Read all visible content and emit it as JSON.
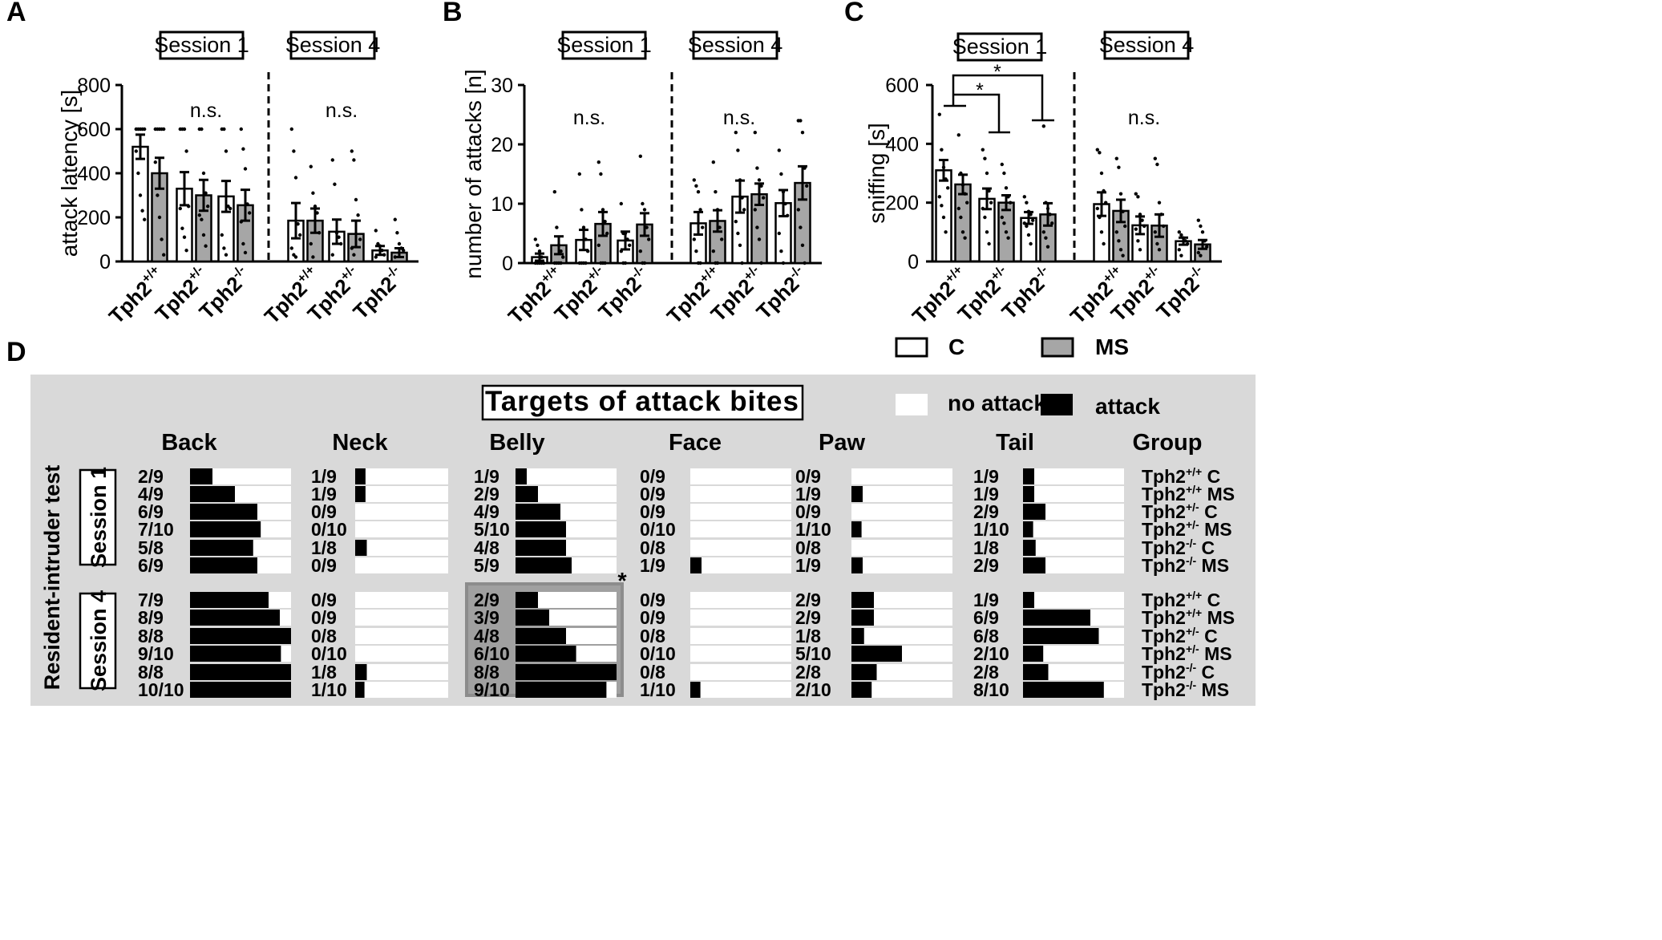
{
  "panel_labels": [
    "A",
    "B",
    "C",
    "D"
  ],
  "group_prefix": "Tph2",
  "chart_data": [
    {
      "panel": "A",
      "type": "bar",
      "ylabel": "attack latency [s]",
      "ylim": [
        0,
        800
      ],
      "yticks": [
        0,
        200,
        400,
        600,
        800
      ],
      "sessions": [
        "Session 1",
        "Session 4"
      ],
      "genotypes": [
        "+/+",
        "+/-",
        "-/-"
      ],
      "annotations": [
        "n.s.",
        "n.s."
      ],
      "series": [
        {
          "name": "C",
          "color": "#ffffff",
          "values": [
            520,
            330,
            295,
            185,
            135,
            50
          ],
          "sem": [
            55,
            75,
            70,
            80,
            55,
            20
          ]
        },
        {
          "name": "MS",
          "color": "#a6a6a6",
          "values": [
            400,
            300,
            255,
            185,
            125,
            40
          ],
          "sem": [
            70,
            70,
            70,
            55,
            60,
            20
          ]
        }
      ],
      "dots": {
        "C": [
          [
            600,
            600,
            600,
            600,
            600,
            500,
            400,
            300,
            230,
            190
          ],
          [
            600,
            600,
            600,
            500,
            250,
            240,
            150,
            110,
            50
          ],
          [
            600,
            600,
            500,
            250,
            240,
            120,
            60,
            30
          ],
          [
            600,
            500,
            380,
            170,
            120,
            60,
            30,
            20
          ],
          [
            460,
            350,
            130,
            110,
            80,
            30
          ],
          [
            140,
            80,
            70,
            50,
            30,
            20
          ]
        ],
        "MS": [
          [
            600,
            600,
            600,
            600,
            600,
            450,
            300,
            200,
            100,
            30
          ],
          [
            600,
            600,
            400,
            310,
            250,
            210,
            190,
            120,
            70
          ],
          [
            600,
            510,
            420,
            260,
            220,
            180,
            80,
            40
          ],
          [
            430,
            310,
            250,
            220,
            130,
            80,
            20
          ],
          [
            500,
            460,
            280,
            210,
            100,
            60,
            30
          ],
          [
            190,
            130,
            80,
            60,
            50,
            20
          ]
        ]
      }
    },
    {
      "panel": "B",
      "type": "bar",
      "ylabel": "number of attacks [n]",
      "ylim": [
        0,
        30
      ],
      "yticks": [
        0,
        10,
        20,
        30
      ],
      "sessions": [
        "Session 1",
        "Session 4"
      ],
      "genotypes": [
        "+/+",
        "+/-",
        "-/-"
      ],
      "annotations": [
        "n.s.",
        "n.s."
      ],
      "series": [
        {
          "name": "C",
          "color": "#ffffff",
          "values": [
            1,
            3.9,
            3.8,
            6.7,
            11.2,
            10.1
          ],
          "sem": [
            0.6,
            1.7,
            1.5,
            1.9,
            2.7,
            2.2
          ],
          "dots": [
            [
              4,
              3,
              2,
              1,
              0,
              0,
              0,
              0,
              0
            ],
            [
              15,
              9,
              6,
              4,
              2,
              0,
              0,
              0,
              0
            ],
            [
              10,
              5,
              5,
              4,
              3,
              2,
              0,
              0
            ],
            [
              14,
              13,
              12,
              9,
              6,
              4,
              2,
              0,
              0
            ],
            [
              22,
              19,
              14,
              11,
              9,
              7,
              5,
              3,
              0
            ],
            [
              19,
              15,
              12,
              10,
              8,
              5,
              2,
              0
            ]
          ]
        },
        {
          "name": "MS",
          "color": "#a6a6a6",
          "values": [
            3,
            6.6,
            6.5,
            7.1,
            11.6,
            13.5
          ],
          "sem": [
            1.5,
            2,
            1.9,
            1.8,
            1.8,
            2.8
          ],
          "dots": [
            [
              12,
              6,
              3,
              2,
              1,
              0,
              0,
              0,
              0
            ],
            [
              17,
              15,
              9,
              7,
              5,
              3,
              0,
              0,
              0
            ],
            [
              18,
              10,
              9,
              6,
              4,
              2,
              0,
              0
            ],
            [
              17,
              12,
              9,
              6,
              4,
              2,
              0,
              0
            ],
            [
              22,
              16,
              14,
              13,
              11,
              9,
              6,
              4,
              0
            ],
            [
              24,
              24,
              22,
              16,
              13,
              9,
              6,
              3,
              0
            ]
          ]
        }
      ]
    },
    {
      "panel": "C",
      "type": "bar",
      "ylabel": "sniffing [s]",
      "ylim": [
        0,
        600
      ],
      "yticks": [
        0,
        200,
        400,
        600
      ],
      "sessions": [
        "Session 1",
        "Session 4"
      ],
      "genotypes": [
        "+/+",
        "+/-",
        "-/-"
      ],
      "annotations": [
        "*",
        "*",
        "n.s."
      ],
      "legend": [
        "C",
        "MS"
      ],
      "series": [
        {
          "name": "C",
          "color": "#ffffff",
          "values": [
            310,
            213,
            148,
            195,
            123,
            69
          ],
          "sem": [
            35,
            35,
            20,
            40,
            30,
            12
          ],
          "dots": [
            [
              500,
              380,
              320,
              280,
              250,
              220,
              190,
              150,
              100
            ],
            [
              380,
              350,
              300,
              240,
              200,
              180,
              150,
              100,
              60
            ],
            [
              220,
              200,
              170,
              160,
              140,
              130,
              120,
              90,
              60
            ],
            [
              380,
              370,
              300,
              240,
              200,
              180,
              150,
              100,
              60
            ],
            [
              230,
              220,
              160,
              140,
              120,
              110,
              70,
              40
            ],
            [
              100,
              90,
              80,
              70,
              60,
              40,
              20
            ]
          ]
        },
        {
          "name": "MS",
          "color": "#a6a6a6",
          "values": [
            262,
            200,
            160,
            172,
            122,
            58
          ],
          "sem": [
            33,
            25,
            38,
            38,
            38,
            15
          ],
          "dots": [
            [
              430,
              300,
              260,
              230,
              200,
              180,
              150,
              100,
              80
            ],
            [
              330,
              300,
              250,
              220,
              200,
              150,
              130,
              100,
              80
            ],
            [
              460,
              200,
              180,
              160,
              130,
              100,
              80,
              50
            ],
            [
              350,
              320,
              230,
              170,
              120,
              100,
              70,
              40,
              20
            ],
            [
              350,
              330,
              200,
              160,
              120,
              100,
              60,
              40
            ],
            [
              140,
              120,
              100,
              70,
              50,
              30,
              20
            ]
          ]
        }
      ]
    },
    {
      "panel": "D",
      "type": "table",
      "title": "Targets of attack bites",
      "legend": [
        "no attack",
        "attack"
      ],
      "side_label": "Resident-intruder test",
      "sessions": [
        "Session 1",
        "Session 4"
      ],
      "columns": [
        "Back",
        "Neck",
        "Belly",
        "Face",
        "Paw",
        "Tail"
      ],
      "group_header": "Group",
      "groups": [
        {
          "prefix": "Tph2",
          "sup": "+/+",
          "cond": "C"
        },
        {
          "prefix": "Tph2",
          "sup": "+/+",
          "cond": "MS"
        },
        {
          "prefix": "Tph2",
          "sup": "+/-",
          "cond": "C"
        },
        {
          "prefix": "Tph2",
          "sup": "+/-",
          "cond": "MS"
        },
        {
          "prefix": "Tph2",
          "sup": "-/-",
          "cond": "C"
        },
        {
          "prefix": "Tph2",
          "sup": "-/-",
          "cond": "MS"
        }
      ],
      "significance": "*",
      "values": {
        "Session 1": {
          "Back": [
            "2/9",
            "4/9",
            "6/9",
            "7/10",
            "5/8",
            "6/9"
          ],
          "Neck": [
            "1/9",
            "1/9",
            "0/9",
            "0/10",
            "1/8",
            "0/9"
          ],
          "Belly": [
            "1/9",
            "2/9",
            "4/9",
            "5/10",
            "4/8",
            "5/9"
          ],
          "Face": [
            "0/9",
            "0/9",
            "0/9",
            "0/10",
            "0/8",
            "1/9"
          ],
          "Paw": [
            "0/9",
            "1/9",
            "0/9",
            "1/10",
            "0/8",
            "1/9"
          ],
          "Tail": [
            "1/9",
            "1/9",
            "2/9",
            "1/10",
            "1/8",
            "2/9"
          ]
        },
        "Session 4": {
          "Back": [
            "7/9",
            "8/9",
            "8/8",
            "9/10",
            "8/8",
            "10/10"
          ],
          "Neck": [
            "0/9",
            "0/9",
            "0/8",
            "0/10",
            "1/8",
            "1/10"
          ],
          "Belly": [
            "2/9",
            "3/9",
            "4/8",
            "6/10",
            "8/8",
            "9/10"
          ],
          "Face": [
            "0/9",
            "0/9",
            "0/8",
            "0/10",
            "0/8",
            "1/10"
          ],
          "Paw": [
            "2/9",
            "2/9",
            "1/8",
            "5/10",
            "2/8",
            "2/10"
          ],
          "Tail": [
            "1/9",
            "6/9",
            "6/8",
            "2/10",
            "2/8",
            "8/10"
          ]
        }
      }
    }
  ]
}
